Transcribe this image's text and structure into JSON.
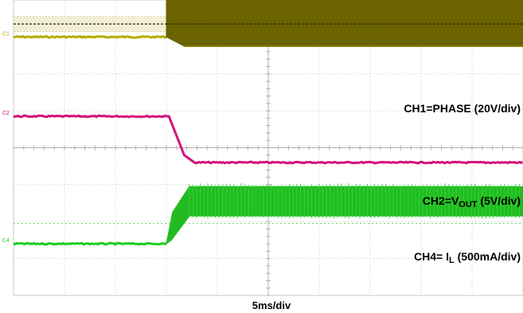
{
  "chart_data": {
    "type": "line",
    "title": "",
    "xlabel": "5ms/div",
    "ylabel": "",
    "x_divisions": 10,
    "y_divisions": 8,
    "xlim": [
      0,
      10
    ],
    "ylim": [
      0,
      8
    ],
    "grid": true,
    "legend": "none",
    "event_time_div": 3.0,
    "series": [
      {
        "name": "CH1",
        "label_parts": [
          {
            "text": "CH1=PHASE (20V/div)",
            "sub": false
          }
        ],
        "marker": "C1",
        "color": "#b3ad00",
        "band_color": "#6b6200",
        "before_level_div": 7.0,
        "switching_band_div": [
          6.75,
          8.4
        ],
        "dashed_level_div": 7.35
      },
      {
        "name": "CH2",
        "label_parts": [
          {
            "text": "CH2=V",
            "sub": false
          },
          {
            "text": "OUT",
            "sub": true
          },
          {
            "text": " (5V/div)",
            "sub": false
          }
        ],
        "marker": "C2",
        "color": "#d4107a",
        "before_level_div": 4.85,
        "after_level_div": 3.6
      },
      {
        "name": "CH4",
        "label_parts": [
          {
            "text": "CH4= I",
            "sub": false
          },
          {
            "text": "L",
            "sub": true
          },
          {
            "text": " (500mA/div)",
            "sub": false
          }
        ],
        "marker": "C4",
        "color": "#22cc22",
        "band_color": "#22bb22",
        "before_level_div": 1.4,
        "ripple_band_div": [
          2.15,
          2.95
        ],
        "dotted_level_div": 1.95
      }
    ]
  }
}
